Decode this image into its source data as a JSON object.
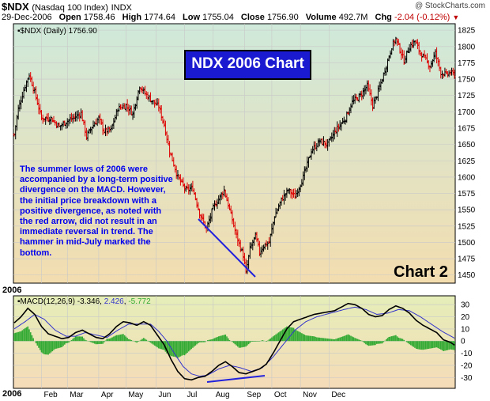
{
  "header": {
    "symbol": "$NDX",
    "name": "(Nasdaq 100 Index)",
    "exchange": "INDX",
    "date": "29-Dec-2006",
    "open_label": "Open",
    "open": "1758.46",
    "high_label": "High",
    "high": "1774.64",
    "low_label": "Low",
    "low": "1755.04",
    "close_label": "Close",
    "close": "1756.90",
    "volume_label": "Volume",
    "volume": "492.7M",
    "chg_label": "Chg",
    "chg": "-2.04 (-0.12%)",
    "credit": "@ StockCharts.com"
  },
  "colors": {
    "up_bar": "#000000",
    "down_bar": "#dd0000",
    "price_bg_top": "#cde8d8",
    "price_bg_bottom": "#f2ddb0",
    "macd_bg_top": "#e4eeb8",
    "macd_bg_bottom": "#f4dcb8",
    "macd_line": "#000000",
    "signal_line": "#3333cc",
    "histogram": "#33aa33",
    "annotation": "#0000ee",
    "title_box": "#1a1ad0"
  },
  "title_box": "NDX 2006 Chart",
  "annotation_text": "The summer lows of 2006 were accompanied by a long-term positive divergence on the MACD.  However, the initial price breakdown with a positive divergence, as noted with the red arrow, did not result in an immediate reversal in trend. The hammer in mid-July marked the bottom.",
  "chart_label": "Chart 2",
  "year_label": "2006",
  "chart_data": [
    {
      "type": "candlestick",
      "legend": "$NDX (Daily) 1756.90",
      "ylim": [
        1440,
        1830
      ],
      "yticks": [
        1450,
        1475,
        1500,
        1525,
        1550,
        1575,
        1600,
        1625,
        1650,
        1675,
        1700,
        1725,
        1750,
        1775,
        1800,
        1825
      ],
      "xticks": [
        "2006",
        "Feb",
        "Mar",
        "Apr",
        "May",
        "Jun",
        "Jul",
        "Aug",
        "Sep",
        "Oct",
        "Nov",
        "Dec"
      ],
      "grid": true,
      "annotation": "trend line under summer lows drawn from early June to the mid-July low",
      "close_path": [
        {
          "d": 0,
          "v": 1665
        },
        {
          "d": 3,
          "v": 1705
        },
        {
          "d": 8,
          "v": 1740
        },
        {
          "d": 11,
          "v": 1757
        },
        {
          "d": 15,
          "v": 1730
        },
        {
          "d": 20,
          "v": 1690
        },
        {
          "d": 27,
          "v": 1690
        },
        {
          "d": 33,
          "v": 1677
        },
        {
          "d": 38,
          "v": 1685
        },
        {
          "d": 43,
          "v": 1690
        },
        {
          "d": 49,
          "v": 1698
        },
        {
          "d": 53,
          "v": 1662
        },
        {
          "d": 57,
          "v": 1677
        },
        {
          "d": 62,
          "v": 1690
        },
        {
          "d": 66,
          "v": 1670
        },
        {
          "d": 71,
          "v": 1672
        },
        {
          "d": 76,
          "v": 1705
        },
        {
          "d": 82,
          "v": 1710
        },
        {
          "d": 87,
          "v": 1697
        },
        {
          "d": 92,
          "v": 1740
        },
        {
          "d": 96,
          "v": 1728
        },
        {
          "d": 102,
          "v": 1715
        },
        {
          "d": 106,
          "v": 1708
        },
        {
          "d": 110,
          "v": 1680
        },
        {
          "d": 114,
          "v": 1640
        },
        {
          "d": 120,
          "v": 1600
        },
        {
          "d": 126,
          "v": 1580
        },
        {
          "d": 131,
          "v": 1583
        },
        {
          "d": 136,
          "v": 1545
        },
        {
          "d": 141,
          "v": 1520
        },
        {
          "d": 146,
          "v": 1553
        },
        {
          "d": 151,
          "v": 1570
        },
        {
          "d": 154,
          "v": 1580
        },
        {
          "d": 158,
          "v": 1550
        },
        {
          "d": 163,
          "v": 1510
        },
        {
          "d": 168,
          "v": 1480
        },
        {
          "d": 170,
          "v": 1453
        },
        {
          "d": 173,
          "v": 1490
        },
        {
          "d": 177,
          "v": 1510
        },
        {
          "d": 180,
          "v": 1485
        },
        {
          "d": 183,
          "v": 1495
        },
        {
          "d": 187,
          "v": 1500
        },
        {
          "d": 191,
          "v": 1540
        },
        {
          "d": 196,
          "v": 1565
        },
        {
          "d": 201,
          "v": 1580
        },
        {
          "d": 206,
          "v": 1570
        },
        {
          "d": 212,
          "v": 1600
        },
        {
          "d": 218,
          "v": 1640
        },
        {
          "d": 224,
          "v": 1655
        },
        {
          "d": 230,
          "v": 1650
        },
        {
          "d": 236,
          "v": 1672
        },
        {
          "d": 243,
          "v": 1690
        },
        {
          "d": 248,
          "v": 1715
        },
        {
          "d": 254,
          "v": 1725
        },
        {
          "d": 259,
          "v": 1740
        },
        {
          "d": 263,
          "v": 1710
        },
        {
          "d": 266,
          "v": 1725
        },
        {
          "d": 270,
          "v": 1750
        },
        {
          "d": 274,
          "v": 1778
        },
        {
          "d": 277,
          "v": 1800
        },
        {
          "d": 280,
          "v": 1812
        },
        {
          "d": 283,
          "v": 1795
        },
        {
          "d": 286,
          "v": 1778
        },
        {
          "d": 290,
          "v": 1800
        },
        {
          "d": 294,
          "v": 1808
        },
        {
          "d": 298,
          "v": 1790
        },
        {
          "d": 301,
          "v": 1782
        },
        {
          "d": 305,
          "v": 1770
        },
        {
          "d": 309,
          "v": 1790
        },
        {
          "d": 313,
          "v": 1760
        },
        {
          "d": 317,
          "v": 1757
        },
        {
          "d": 320,
          "v": 1760
        },
        {
          "d": 323,
          "v": 1757
        }
      ]
    },
    {
      "type": "line",
      "legend": "MACD(12,26,9) -3.346, 2.426, -5.772",
      "series_labels": [
        "MACD(12,26,9)",
        "-3.346",
        "2.426",
        "-5.772"
      ],
      "ylim": [
        -37,
        36
      ],
      "yticks": [
        30,
        20,
        10,
        0,
        -10,
        -20,
        -30
      ],
      "xticks": [
        "2006",
        "Feb",
        "Mar",
        "Apr",
        "May",
        "Jun",
        "Jul",
        "Aug",
        "Sep",
        "Oct",
        "Nov",
        "Dec"
      ],
      "grid": true,
      "annotation": "rising trend line across MACD lows from June to August",
      "series": [
        {
          "name": "MACD",
          "values": [
            {
              "d": 0,
              "v": 15
            },
            {
              "d": 5,
              "v": 20
            },
            {
              "d": 10,
              "v": 27
            },
            {
              "d": 15,
              "v": 22
            },
            {
              "d": 20,
              "v": 12
            },
            {
              "d": 25,
              "v": 6
            },
            {
              "d": 30,
              "v": 4
            },
            {
              "d": 35,
              "v": 2
            },
            {
              "d": 40,
              "v": 3
            },
            {
              "d": 45,
              "v": 7
            },
            {
              "d": 50,
              "v": 9
            },
            {
              "d": 55,
              "v": 6
            },
            {
              "d": 60,
              "v": 3
            },
            {
              "d": 65,
              "v": 2
            },
            {
              "d": 70,
              "v": 6
            },
            {
              "d": 75,
              "v": 12
            },
            {
              "d": 80,
              "v": 16
            },
            {
              "d": 85,
              "v": 15
            },
            {
              "d": 90,
              "v": 13
            },
            {
              "d": 95,
              "v": 16
            },
            {
              "d": 100,
              "v": 13
            },
            {
              "d": 105,
              "v": 5
            },
            {
              "d": 110,
              "v": -3
            },
            {
              "d": 115,
              "v": -15
            },
            {
              "d": 120,
              "v": -25
            },
            {
              "d": 125,
              "v": -31
            },
            {
              "d": 130,
              "v": -32
            },
            {
              "d": 135,
              "v": -30
            },
            {
              "d": 140,
              "v": -29
            },
            {
              "d": 145,
              "v": -25
            },
            {
              "d": 150,
              "v": -20
            },
            {
              "d": 155,
              "v": -17
            },
            {
              "d": 160,
              "v": -21
            },
            {
              "d": 165,
              "v": -26
            },
            {
              "d": 170,
              "v": -27
            },
            {
              "d": 175,
              "v": -25
            },
            {
              "d": 180,
              "v": -23
            },
            {
              "d": 185,
              "v": -19
            },
            {
              "d": 190,
              "v": -10
            },
            {
              "d": 195,
              "v": 0
            },
            {
              "d": 200,
              "v": 10
            },
            {
              "d": 205,
              "v": 16
            },
            {
              "d": 210,
              "v": 18
            },
            {
              "d": 215,
              "v": 20
            },
            {
              "d": 220,
              "v": 22
            },
            {
              "d": 225,
              "v": 23
            },
            {
              "d": 230,
              "v": 24
            },
            {
              "d": 235,
              "v": 25
            },
            {
              "d": 240,
              "v": 28
            },
            {
              "d": 245,
              "v": 31
            },
            {
              "d": 250,
              "v": 30
            },
            {
              "d": 255,
              "v": 27
            },
            {
              "d": 260,
              "v": 22
            },
            {
              "d": 265,
              "v": 20
            },
            {
              "d": 270,
              "v": 21
            },
            {
              "d": 275,
              "v": 26
            },
            {
              "d": 280,
              "v": 29
            },
            {
              "d": 285,
              "v": 27
            },
            {
              "d": 290,
              "v": 23
            },
            {
              "d": 295,
              "v": 17
            },
            {
              "d": 300,
              "v": 13
            },
            {
              "d": 305,
              "v": 10
            },
            {
              "d": 310,
              "v": 7
            },
            {
              "d": 315,
              "v": 1
            },
            {
              "d": 320,
              "v": -1
            },
            {
              "d": 323,
              "v": -3.3
            }
          ]
        },
        {
          "name": "Signal",
          "values": [
            {
              "d": 0,
              "v": 10
            },
            {
              "d": 8,
              "v": 16
            },
            {
              "d": 15,
              "v": 22
            },
            {
              "d": 22,
              "v": 18
            },
            {
              "d": 30,
              "v": 9
            },
            {
              "d": 38,
              "v": 4
            },
            {
              "d": 45,
              "v": 4
            },
            {
              "d": 52,
              "v": 7
            },
            {
              "d": 60,
              "v": 5
            },
            {
              "d": 68,
              "v": 3
            },
            {
              "d": 76,
              "v": 9
            },
            {
              "d": 84,
              "v": 14
            },
            {
              "d": 92,
              "v": 14
            },
            {
              "d": 100,
              "v": 14
            },
            {
              "d": 106,
              "v": 8
            },
            {
              "d": 112,
              "v": 0
            },
            {
              "d": 118,
              "v": -11
            },
            {
              "d": 124,
              "v": -21
            },
            {
              "d": 130,
              "v": -27
            },
            {
              "d": 136,
              "v": -29
            },
            {
              "d": 142,
              "v": -28
            },
            {
              "d": 150,
              "v": -23
            },
            {
              "d": 158,
              "v": -20
            },
            {
              "d": 166,
              "v": -22
            },
            {
              "d": 174,
              "v": -25
            },
            {
              "d": 182,
              "v": -22
            },
            {
              "d": 190,
              "v": -13
            },
            {
              "d": 198,
              "v": -2
            },
            {
              "d": 206,
              "v": 9
            },
            {
              "d": 214,
              "v": 16
            },
            {
              "d": 222,
              "v": 20
            },
            {
              "d": 232,
              "v": 23
            },
            {
              "d": 242,
              "v": 26
            },
            {
              "d": 250,
              "v": 28
            },
            {
              "d": 258,
              "v": 26
            },
            {
              "d": 266,
              "v": 22
            },
            {
              "d": 274,
              "v": 23
            },
            {
              "d": 282,
              "v": 26
            },
            {
              "d": 290,
              "v": 25
            },
            {
              "d": 298,
              "v": 20
            },
            {
              "d": 306,
              "v": 14
            },
            {
              "d": 314,
              "v": 8
            },
            {
              "d": 323,
              "v": 2.4
            }
          ]
        }
      ]
    }
  ]
}
